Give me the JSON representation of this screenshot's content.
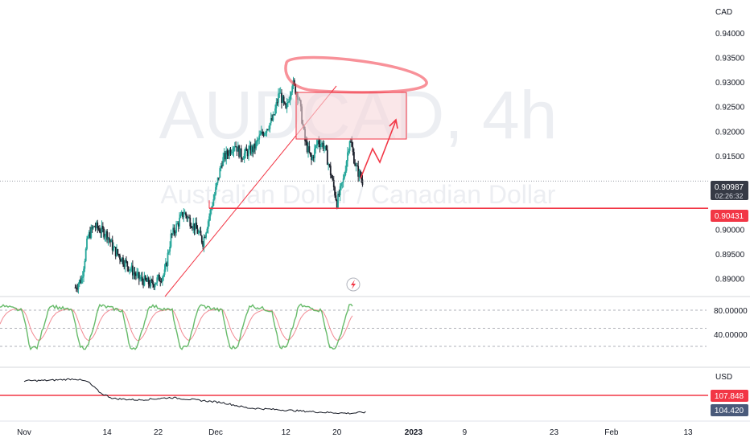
{
  "colors": {
    "up": "#26a69a",
    "down": "#1e222d",
    "annotation": "#f23645",
    "zone_fill": "#f7d7db",
    "stoch_k": "#4caf50",
    "stoch_d": "#f28a93",
    "dxy_line": "#131722",
    "axis_text": "#131722",
    "grid_dash": "#9598a1",
    "watermark": "#e9eaee",
    "price_tag_bg": "#363a45",
    "dxy_tag_bg": "#4a5a7a"
  },
  "chart_data": [
    {
      "type": "candlestick",
      "watermark_title": "AUDCAD, 4h",
      "watermark_subtitle": "Australian Dollar / Canadian Dollar",
      "currency_label": "CAD",
      "y_ticks": [
        "0.94000",
        "0.93500",
        "0.93000",
        "0.92500",
        "0.92000",
        "0.91500",
        "0.90000",
        "0.89500",
        "0.89000"
      ],
      "ylim": [
        0.8875,
        0.9445
      ],
      "last_price": "0.90987",
      "countdown": "02:26:32",
      "support_level": "0.90431",
      "x_ticks": [
        "Nov",
        "14",
        "22",
        "Dec",
        "12",
        "20",
        "2023",
        "9",
        "23",
        "Feb",
        "13"
      ],
      "path_closes": [
        {
          "date": "Nov 9",
          "close": 0.8882
        },
        {
          "date": "Nov 10",
          "close": 0.89
        },
        {
          "date": "Nov 11",
          "close": 0.8985
        },
        {
          "date": "Nov 12",
          "close": 0.9007
        },
        {
          "date": "Nov 14",
          "close": 0.899
        },
        {
          "date": "Nov 15",
          "close": 0.896
        },
        {
          "date": "Nov 17",
          "close": 0.893
        },
        {
          "date": "Nov 19",
          "close": 0.89
        },
        {
          "date": "Nov 21",
          "close": 0.8888
        },
        {
          "date": "Nov 23",
          "close": 0.891
        },
        {
          "date": "Nov 24",
          "close": 0.8985
        },
        {
          "date": "Nov 26",
          "close": 0.9035
        },
        {
          "date": "Nov 28",
          "close": 0.9
        },
        {
          "date": "Nov 29",
          "close": 0.8975
        },
        {
          "date": "Dec 1",
          "close": 0.908
        },
        {
          "date": "Dec 2",
          "close": 0.914
        },
        {
          "date": "Dec 4",
          "close": 0.9175
        },
        {
          "date": "Dec 5",
          "close": 0.915
        },
        {
          "date": "Dec 7",
          "close": 0.9165
        },
        {
          "date": "Dec 8",
          "close": 0.919
        },
        {
          "date": "Dec 10",
          "close": 0.9225
        },
        {
          "date": "Dec 11",
          "close": 0.928
        },
        {
          "date": "Dec 12",
          "close": 0.924
        },
        {
          "date": "Dec 13",
          "close": 0.93
        },
        {
          "date": "Dec 14",
          "close": 0.927
        },
        {
          "date": "Dec 15",
          "close": 0.918
        },
        {
          "date": "Dec 16",
          "close": 0.914
        },
        {
          "date": "Dec 17",
          "close": 0.918
        },
        {
          "date": "Dec 18",
          "close": 0.917
        },
        {
          "date": "Dec 19",
          "close": 0.9115
        },
        {
          "date": "Dec 20",
          "close": 0.9055
        },
        {
          "date": "Dec 21",
          "close": 0.91
        },
        {
          "date": "Dec 22",
          "close": 0.9185
        },
        {
          "date": "Dec 23",
          "close": 0.9125
        },
        {
          "date": "Dec 24",
          "close": 0.9099
        }
      ]
    },
    {
      "type": "line",
      "indicator": "stochastic",
      "y_ticks": [
        "80.00000",
        "40.00000"
      ],
      "ylim": [
        0,
        100
      ]
    },
    {
      "type": "line",
      "indicator": "DXY",
      "currency_label": "USD",
      "level_label": "107.848",
      "last_value_label": "104.420",
      "path_values": [
        {
          "date": "Nov 1",
          "value": 110.8
        },
        {
          "date": "Nov 5",
          "value": 110.9
        },
        {
          "date": "Nov 9",
          "value": 111.2
        },
        {
          "date": "Nov 11",
          "value": 110.6
        },
        {
          "date": "Nov 13",
          "value": 108.3
        },
        {
          "date": "Nov 15",
          "value": 107.2
        },
        {
          "date": "Nov 19",
          "value": 106.9
        },
        {
          "date": "Nov 24",
          "value": 107.4
        },
        {
          "date": "Nov 28",
          "value": 106.9
        },
        {
          "date": "Dec 2",
          "value": 106.4
        },
        {
          "date": "Dec 6",
          "value": 105.3
        },
        {
          "date": "Dec 10",
          "value": 105.0
        },
        {
          "date": "Dec 14",
          "value": 104.7
        },
        {
          "date": "Dec 18",
          "value": 104.4
        },
        {
          "date": "Dec 22",
          "value": 104.2
        },
        {
          "date": "Dec 24",
          "value": 104.4
        }
      ]
    }
  ]
}
